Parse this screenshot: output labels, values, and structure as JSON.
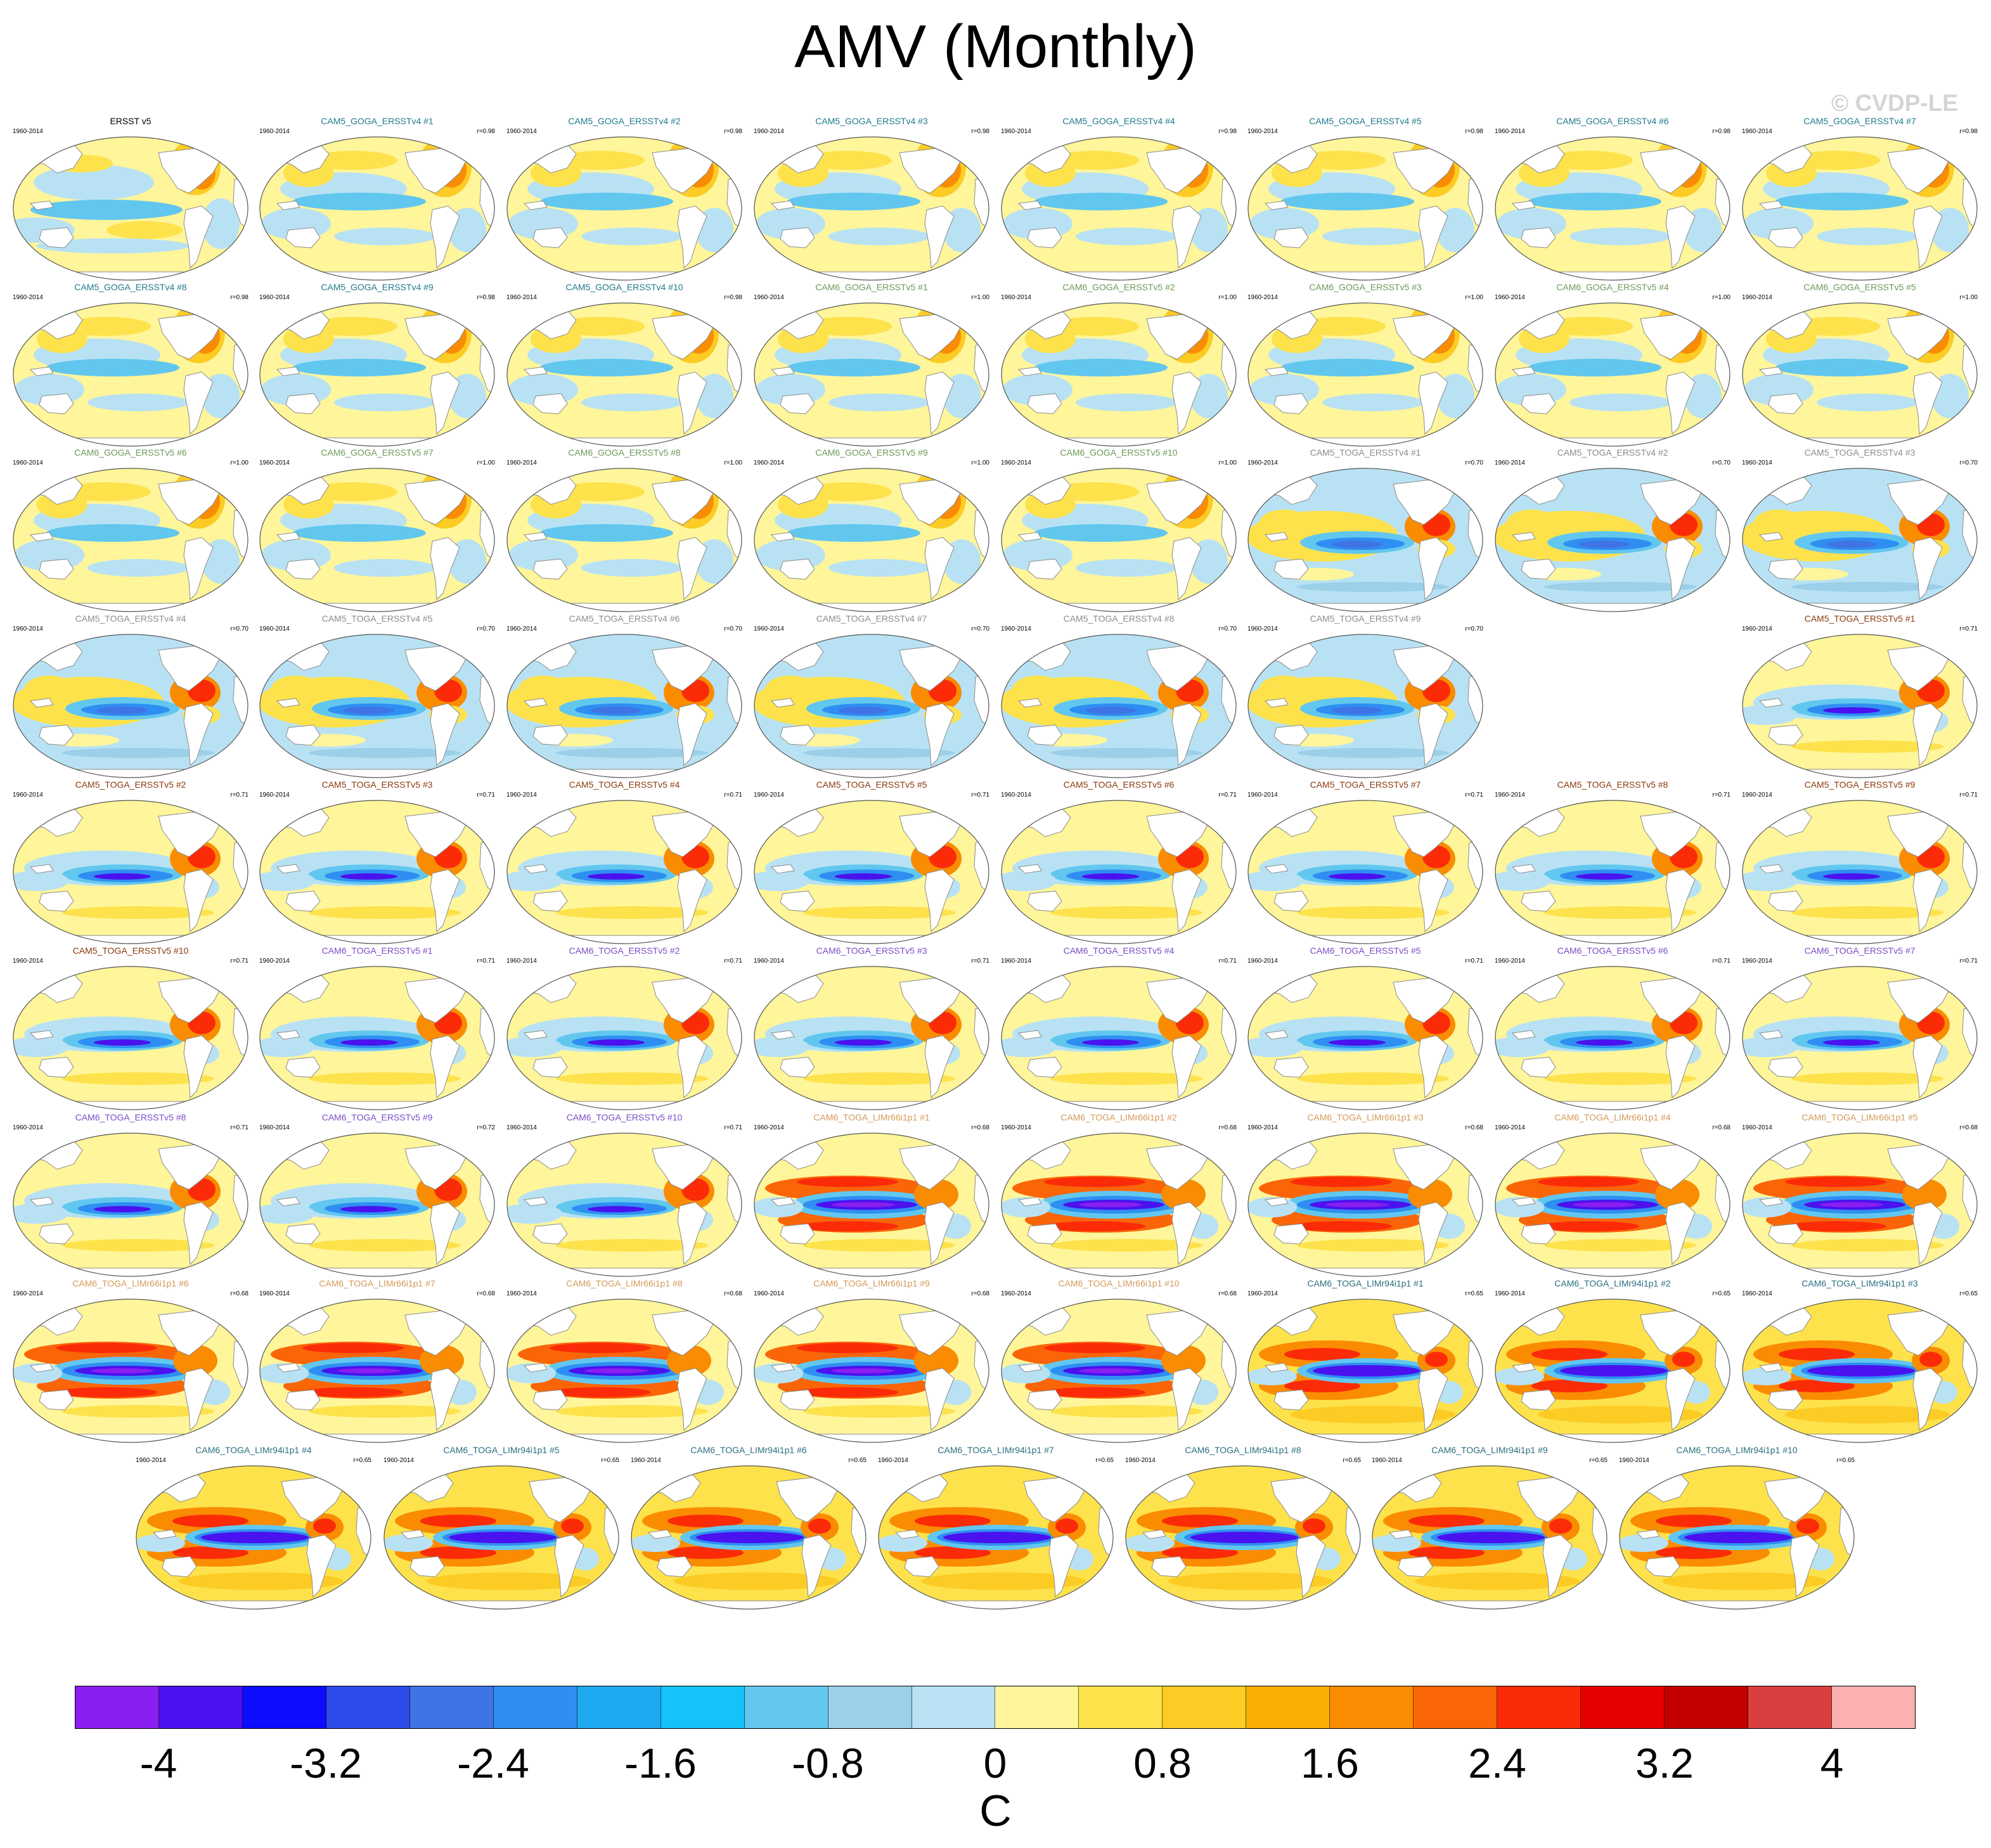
{
  "title": "AMV (Monthly)",
  "watermark": "© CVDP-LE",
  "chart_data": {
    "type": "heatmap",
    "title": "AMV (Monthly)",
    "description_fields_note": "",
    "panel_period": "1960-2014",
    "units": "C",
    "colorbar": {
      "colors": [
        "#8b1ef0",
        "#4a12ee",
        "#0c0cff",
        "#2d4be8",
        "#3f74e4",
        "#2f8ef2",
        "#1eaaf0",
        "#14c3fa",
        "#62c7ef",
        "#9ccfe8",
        "#b8e2f4",
        "#fff59a",
        "#fde24c",
        "#fccb24",
        "#fbae04",
        "#fa8c02",
        "#fa6508",
        "#fb2b07",
        "#e60000",
        "#c20000",
        "#da3f3f",
        "#fcb0b0"
      ],
      "tick_labels": [
        "-4",
        "-3.2",
        "-2.4",
        "-1.6",
        "-0.8",
        "0",
        "0.8",
        "1.6",
        "2.4",
        "3.2",
        "4"
      ],
      "range": [
        -4.4,
        4.4
      ]
    },
    "panels": [
      {
        "label": "ERSST v5",
        "color": "#000000",
        "r": "",
        "pattern": "obs"
      },
      {
        "label": "CAM5_GOGA_ERSSTv4 #1",
        "color": "#1f7a8c",
        "r": "r=0.98",
        "pattern": "goga"
      },
      {
        "label": "CAM5_GOGA_ERSSTv4 #2",
        "color": "#1f7a8c",
        "r": "r=0.98",
        "pattern": "goga"
      },
      {
        "label": "CAM5_GOGA_ERSSTv4 #3",
        "color": "#1f7a8c",
        "r": "r=0.98",
        "pattern": "goga"
      },
      {
        "label": "CAM5_GOGA_ERSSTv4 #4",
        "color": "#1f7a8c",
        "r": "r=0.98",
        "pattern": "goga"
      },
      {
        "label": "CAM5_GOGA_ERSSTv4 #5",
        "color": "#1f7a8c",
        "r": "r=0.98",
        "pattern": "goga"
      },
      {
        "label": "CAM5_GOGA_ERSSTv4 #6",
        "color": "#1f7a8c",
        "r": "r=0.98",
        "pattern": "goga"
      },
      {
        "label": "CAM5_GOGA_ERSSTv4 #7",
        "color": "#1f7a8c",
        "r": "r=0.98",
        "pattern": "goga"
      },
      {
        "label": "CAM5_GOGA_ERSSTv4 #8",
        "color": "#1f7a8c",
        "r": "r=0.98",
        "pattern": "goga"
      },
      {
        "label": "CAM5_GOGA_ERSSTv4 #9",
        "color": "#1f7a8c",
        "r": "r=0.98",
        "pattern": "goga"
      },
      {
        "label": "CAM5_GOGA_ERSSTv4 #10",
        "color": "#1f7a8c",
        "r": "r=0.98",
        "pattern": "goga"
      },
      {
        "label": "CAM6_GOGA_ERSSTv5 #1",
        "color": "#6d9a58",
        "r": "r=1.00",
        "pattern": "goga"
      },
      {
        "label": "CAM6_GOGA_ERSSTv5 #2",
        "color": "#6d9a58",
        "r": "r=1.00",
        "pattern": "goga"
      },
      {
        "label": "CAM6_GOGA_ERSSTv5 #3",
        "color": "#6d9a58",
        "r": "r=1.00",
        "pattern": "goga"
      },
      {
        "label": "CAM6_GOGA_ERSSTv5 #4",
        "color": "#6d9a58",
        "r": "r=1.00",
        "pattern": "goga"
      },
      {
        "label": "CAM6_GOGA_ERSSTv5 #5",
        "color": "#6d9a58",
        "r": "r=1.00",
        "pattern": "goga"
      },
      {
        "label": "CAM6_GOGA_ERSSTv5 #6",
        "color": "#6d9a58",
        "r": "r=1.00",
        "pattern": "goga"
      },
      {
        "label": "CAM6_GOGA_ERSSTv5 #7",
        "color": "#6d9a58",
        "r": "r=1.00",
        "pattern": "goga"
      },
      {
        "label": "CAM6_GOGA_ERSSTv5 #8",
        "color": "#6d9a58",
        "r": "r=1.00",
        "pattern": "goga"
      },
      {
        "label": "CAM6_GOGA_ERSSTv5 #9",
        "color": "#6d9a58",
        "r": "r=1.00",
        "pattern": "goga"
      },
      {
        "label": "CAM6_GOGA_ERSSTv5 #10",
        "color": "#6d9a58",
        "r": "r=1.00",
        "pattern": "goga"
      },
      {
        "label": "CAM5_TOGA_ERSSTv4 #1",
        "color": "#8c8c8c",
        "r": "r=0.70",
        "pattern": "togav4"
      },
      {
        "label": "CAM5_TOGA_ERSSTv4 #2",
        "color": "#8c8c8c",
        "r": "r=0.70",
        "pattern": "togav4"
      },
      {
        "label": "CAM5_TOGA_ERSSTv4 #3",
        "color": "#8c8c8c",
        "r": "r=0.70",
        "pattern": "togav4"
      },
      {
        "label": "CAM5_TOGA_ERSSTv4 #4",
        "color": "#8c8c8c",
        "r": "r=0.70",
        "pattern": "togav4"
      },
      {
        "label": "CAM5_TOGA_ERSSTv4 #5",
        "color": "#8c8c8c",
        "r": "r=0.70",
        "pattern": "togav4"
      },
      {
        "label": "CAM5_TOGA_ERSSTv4 #6",
        "color": "#8c8c8c",
        "r": "r=0.70",
        "pattern": "togav4"
      },
      {
        "label": "CAM5_TOGA_ERSSTv4 #7",
        "color": "#8c8c8c",
        "r": "r=0.70",
        "pattern": "togav4"
      },
      {
        "label": "CAM5_TOGA_ERSSTv4 #8",
        "color": "#8c8c8c",
        "r": "r=0.70",
        "pattern": "togav4"
      },
      {
        "label": "CAM5_TOGA_ERSSTv4 #9",
        "color": "#8c8c8c",
        "r": "r=0.70",
        "pattern": "togav4"
      },
      null,
      {
        "label": "CAM5_TOGA_ERSSTv5 #1",
        "color": "#8b3a0e",
        "r": "r=0.71",
        "pattern": "togav5"
      },
      {
        "label": "CAM5_TOGA_ERSSTv5 #2",
        "color": "#8b3a0e",
        "r": "r=0.71",
        "pattern": "togav5"
      },
      {
        "label": "CAM5_TOGA_ERSSTv5 #3",
        "color": "#8b3a0e",
        "r": "r=0.71",
        "pattern": "togav5"
      },
      {
        "label": "CAM5_TOGA_ERSSTv5 #4",
        "color": "#8b3a0e",
        "r": "r=0.71",
        "pattern": "togav5"
      },
      {
        "label": "CAM5_TOGA_ERSSTv5 #5",
        "color": "#8b3a0e",
        "r": "r=0.71",
        "pattern": "togav5"
      },
      {
        "label": "CAM5_TOGA_ERSSTv5 #6",
        "color": "#8b3a0e",
        "r": "r=0.71",
        "pattern": "togav5"
      },
      {
        "label": "CAM5_TOGA_ERSSTv5 #7",
        "color": "#8b3a0e",
        "r": "r=0.71",
        "pattern": "togav5"
      },
      {
        "label": "CAM5_TOGA_ERSSTv5 #8",
        "color": "#8b3a0e",
        "r": "r=0.71",
        "pattern": "togav5"
      },
      {
        "label": "CAM5_TOGA_ERSSTv5 #9",
        "color": "#8b3a0e",
        "r": "r=0.71",
        "pattern": "togav5"
      },
      {
        "label": "CAM5_TOGA_ERSSTv5 #10",
        "color": "#8b3a0e",
        "r": "r=0.71",
        "pattern": "togav5"
      },
      {
        "label": "CAM6_TOGA_ERSSTv5 #1",
        "color": "#7b4cc8",
        "r": "r=0.71",
        "pattern": "togav5"
      },
      {
        "label": "CAM6_TOGA_ERSSTv5 #2",
        "color": "#7b4cc8",
        "r": "r=0.71",
        "pattern": "togav5"
      },
      {
        "label": "CAM6_TOGA_ERSSTv5 #3",
        "color": "#7b4cc8",
        "r": "r=0.71",
        "pattern": "togav5"
      },
      {
        "label": "CAM6_TOGA_ERSSTv5 #4",
        "color": "#7b4cc8",
        "r": "r=0.71",
        "pattern": "togav5"
      },
      {
        "label": "CAM6_TOGA_ERSSTv5 #5",
        "color": "#7b4cc8",
        "r": "r=0.71",
        "pattern": "togav5"
      },
      {
        "label": "CAM6_TOGA_ERSSTv5 #6",
        "color": "#7b4cc8",
        "r": "r=0.71",
        "pattern": "togav5"
      },
      {
        "label": "CAM6_TOGA_ERSSTv5 #7",
        "color": "#7b4cc8",
        "r": "r=0.71",
        "pattern": "togav5"
      },
      {
        "label": "CAM6_TOGA_ERSSTv5 #8",
        "color": "#7b4cc8",
        "r": "r=0.71",
        "pattern": "togav5"
      },
      {
        "label": "CAM6_TOGA_ERSSTv5 #9",
        "color": "#7b4cc8",
        "r": "r=0.72",
        "pattern": "togav5"
      },
      {
        "label": "CAM6_TOGA_ERSSTv5 #10",
        "color": "#7b4cc8",
        "r": "r=0.71",
        "pattern": "togav5"
      },
      {
        "label": "CAM6_TOGA_LIMr66i1p1 #1",
        "color": "#d39a5a",
        "r": "r=0.68",
        "pattern": "lim66"
      },
      {
        "label": "CAM6_TOGA_LIMr66i1p1 #2",
        "color": "#d39a5a",
        "r": "r=0.68",
        "pattern": "lim66"
      },
      {
        "label": "CAM6_TOGA_LIMr66i1p1 #3",
        "color": "#d39a5a",
        "r": "r=0.68",
        "pattern": "lim66"
      },
      {
        "label": "CAM6_TOGA_LIMr66i1p1 #4",
        "color": "#d39a5a",
        "r": "r=0.68",
        "pattern": "lim66"
      },
      {
        "label": "CAM6_TOGA_LIMr66i1p1 #5",
        "color": "#d39a5a",
        "r": "r=0.68",
        "pattern": "lim66"
      },
      {
        "label": "CAM6_TOGA_LIMr66i1p1 #6",
        "color": "#d39a5a",
        "r": "r=0.68",
        "pattern": "lim66"
      },
      {
        "label": "CAM6_TOGA_LIMr66i1p1 #7",
        "color": "#d39a5a",
        "r": "r=0.68",
        "pattern": "lim66"
      },
      {
        "label": "CAM6_TOGA_LIMr66i1p1 #8",
        "color": "#d39a5a",
        "r": "r=0.68",
        "pattern": "lim66"
      },
      {
        "label": "CAM6_TOGA_LIMr66i1p1 #9",
        "color": "#d39a5a",
        "r": "r=0.68",
        "pattern": "lim66"
      },
      {
        "label": "CAM6_TOGA_LIMr66i1p1 #10",
        "color": "#d39a5a",
        "r": "r=0.68",
        "pattern": "lim66"
      },
      {
        "label": "CAM6_TOGA_LIMr94i1p1 #1",
        "color": "#2a6f80",
        "r": "r=0.65",
        "pattern": "lim94"
      },
      {
        "label": "CAM6_TOGA_LIMr94i1p1 #2",
        "color": "#2a6f80",
        "r": "r=0.65",
        "pattern": "lim94"
      },
      {
        "label": "CAM6_TOGA_LIMr94i1p1 #3",
        "color": "#2a6f80",
        "r": "r=0.65",
        "pattern": "lim94"
      },
      {
        "label": "CAM6_TOGA_LIMr94i1p1 #4",
        "color": "#2a6f80",
        "r": "r=0.65",
        "pattern": "lim94"
      },
      {
        "label": "CAM6_TOGA_LIMr94i1p1 #5",
        "color": "#2a6f80",
        "r": "r=0.65",
        "pattern": "lim94"
      },
      {
        "label": "CAM6_TOGA_LIMr94i1p1 #6",
        "color": "#2a6f80",
        "r": "r=0.65",
        "pattern": "lim94"
      },
      {
        "label": "CAM6_TOGA_LIMr94i1p1 #7",
        "color": "#2a6f80",
        "r": "r=0.65",
        "pattern": "lim94"
      },
      {
        "label": "CAM6_TOGA_LIMr94i1p1 #8",
        "color": "#2a6f80",
        "r": "r=0.65",
        "pattern": "lim94"
      },
      {
        "label": "CAM6_TOGA_LIMr94i1p1 #9",
        "color": "#2a6f80",
        "r": "r=0.65",
        "pattern": "lim94"
      },
      {
        "label": "CAM6_TOGA_LIMr94i1p1 #10",
        "color": "#2a6f80",
        "r": "r=0.65",
        "pattern": "lim94"
      }
    ]
  }
}
